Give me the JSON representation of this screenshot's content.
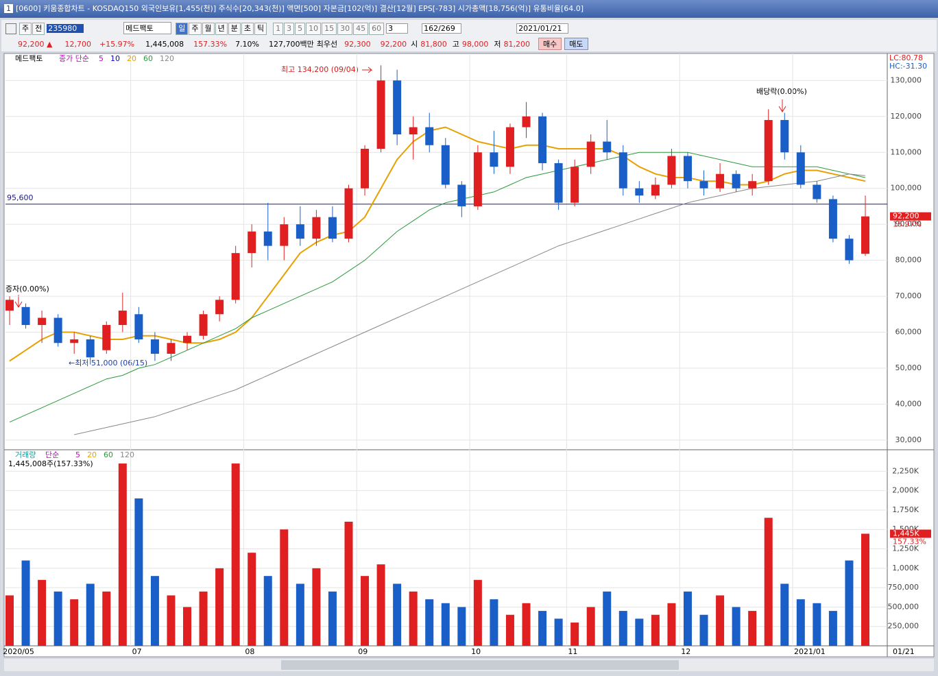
{
  "window": {
    "title": "[0600] 키움종합차트 - KOSDAQ150 외국인보유[1,455(천)] 주식수[20,343(천)] 액면[500] 자본금[102(억)] 결산[12월] EPS[-783] 시가총액[18,756(억)] 유통비율[64.0]"
  },
  "toolbar": {
    "left_buttons": [
      "주",
      "전"
    ],
    "code": "235980",
    "indicator": "메드팩토",
    "period_buttons": [
      "일",
      "주",
      "월",
      "년",
      "분",
      "초",
      "틱"
    ],
    "interval_buttons": [
      "1",
      "3",
      "5",
      "10",
      "15",
      "30",
      "45",
      "60"
    ],
    "count": "3",
    "range": "162/269",
    "date": "2021/01/21"
  },
  "quote": {
    "price": "92,200 ▲",
    "change": "12,700",
    "rate": "+15.97%",
    "volume": "1,445,008",
    "volume_rate": "157.33%",
    "turnover": "7.10%",
    "amount": "127,700백만",
    "best_label": "최우선",
    "bid1": "92,300",
    "bid2": "92,200",
    "open_label": "시",
    "open": "81,800",
    "high_label": "고",
    "high": "98,000",
    "low_label": "저",
    "low": "81,200",
    "buy": "매수",
    "sell": "매도"
  },
  "chart_data": [
    {
      "type": "candlestick",
      "name": "메드팩토",
      "legend_prefix": "종가 단순",
      "legend_extra": [
        {
          "name": "5",
          "color": "#cc00cc"
        },
        {
          "name": "10",
          "color": "#0000cc"
        }
      ],
      "up_color": "#e02020",
      "down_color": "#1a5fc8",
      "x": [
        "2020/05",
        null,
        null,
        null,
        null,
        null,
        null,
        null,
        "07",
        null,
        null,
        null,
        null,
        null,
        null,
        "08",
        null,
        null,
        null,
        null,
        null,
        null,
        "09",
        null,
        null,
        null,
        null,
        null,
        null,
        "10",
        null,
        null,
        null,
        null,
        null,
        "11",
        null,
        null,
        null,
        null,
        null,
        null,
        "12",
        null,
        null,
        null,
        null,
        null,
        null,
        "2021/01",
        null,
        null,
        null,
        null
      ],
      "open": [
        66000,
        67000,
        62000,
        64000,
        57000,
        58000,
        55000,
        62000,
        65000,
        58000,
        54000,
        57000,
        59000,
        65000,
        69000,
        82000,
        88000,
        84000,
        90000,
        86000,
        92000,
        86000,
        100000,
        111000,
        130000,
        115000,
        117000,
        112000,
        101000,
        95000,
        110000,
        106000,
        117000,
        120000,
        107000,
        96000,
        106000,
        113000,
        110000,
        100000,
        98000,
        101000,
        109000,
        102000,
        100000,
        104000,
        100000,
        102000,
        119000,
        110000,
        101000,
        97000,
        86000,
        81800
      ],
      "high": [
        70000,
        68000,
        66000,
        65000,
        60000,
        59000,
        63000,
        71000,
        67000,
        60000,
        58000,
        60000,
        66000,
        70000,
        84000,
        90000,
        96000,
        92000,
        95000,
        94000,
        95000,
        101000,
        112000,
        134200,
        133000,
        120000,
        121000,
        114000,
        102000,
        112000,
        116000,
        118000,
        124000,
        121000,
        108000,
        108000,
        115000,
        119000,
        112000,
        102000,
        103000,
        111000,
        110000,
        105000,
        107000,
        105000,
        104000,
        122000,
        121000,
        112000,
        102000,
        98000,
        87000,
        98000
      ],
      "low": [
        62000,
        61000,
        57000,
        56000,
        54000,
        51000,
        54000,
        60000,
        57000,
        52000,
        52000,
        55000,
        58000,
        63000,
        68000,
        78000,
        80000,
        80000,
        84000,
        84000,
        85000,
        85000,
        98000,
        110000,
        112000,
        108000,
        110000,
        100000,
        92000,
        94000,
        104000,
        104000,
        114000,
        105000,
        94000,
        95000,
        104000,
        108000,
        98000,
        96000,
        97000,
        100000,
        100000,
        98000,
        99000,
        99000,
        98000,
        101000,
        108000,
        100000,
        96000,
        85000,
        79000,
        81200
      ],
      "close": [
        69000,
        62000,
        64000,
        57000,
        58000,
        53000,
        62000,
        66000,
        58000,
        54000,
        57000,
        59000,
        65000,
        69000,
        82000,
        88000,
        84000,
        90000,
        86000,
        92000,
        86000,
        100000,
        111000,
        130000,
        115000,
        117000,
        112000,
        101000,
        95000,
        110000,
        106000,
        117000,
        120000,
        107000,
        96000,
        106000,
        113000,
        110000,
        100000,
        98000,
        101000,
        109000,
        102000,
        100000,
        104000,
        100000,
        102000,
        119000,
        110000,
        101000,
        97000,
        86000,
        80000,
        92200
      ],
      "series": [
        {
          "name": "20",
          "color": "#e8a000",
          "values": [
            52000,
            55000,
            58000,
            60000,
            60000,
            59000,
            58000,
            58000,
            59000,
            59000,
            58000,
            57000,
            57000,
            58000,
            60000,
            64000,
            70000,
            76000,
            82000,
            85000,
            87000,
            88000,
            92000,
            100000,
            108000,
            113000,
            116000,
            117000,
            115000,
            113000,
            112000,
            111000,
            112000,
            112000,
            111000,
            111000,
            111000,
            111000,
            109000,
            106000,
            104000,
            103000,
            103000,
            102000,
            102000,
            101000,
            101000,
            102000,
            104000,
            105000,
            105000,
            104000,
            103000,
            102000
          ]
        },
        {
          "name": "60",
          "color": "#2a9a3a",
          "values": [
            35000,
            37000,
            39000,
            41000,
            43000,
            45000,
            47000,
            48000,
            50000,
            51000,
            53000,
            55000,
            57000,
            59000,
            61000,
            64000,
            66000,
            68000,
            70000,
            72000,
            74000,
            77000,
            80000,
            84000,
            88000,
            91000,
            94000,
            96000,
            97000,
            98000,
            99000,
            101000,
            103000,
            104000,
            105000,
            106000,
            107000,
            108000,
            109000,
            110000,
            110000,
            110000,
            110000,
            109000,
            108000,
            107000,
            106000,
            106000,
            106000,
            106000,
            106000,
            105000,
            104000,
            103000
          ]
        },
        {
          "name": "120",
          "color": "#888888",
          "values": [
            null,
            null,
            null,
            null,
            31500,
            32500,
            33500,
            34500,
            35500,
            36500,
            38000,
            39500,
            41000,
            42500,
            44000,
            46000,
            48000,
            50000,
            52000,
            54000,
            56000,
            58000,
            60000,
            62000,
            64000,
            66000,
            68000,
            70000,
            72000,
            74000,
            76000,
            78000,
            80000,
            82000,
            84000,
            85500,
            87000,
            88500,
            90000,
            91500,
            93000,
            94500,
            96000,
            97000,
            98000,
            99000,
            100000,
            100500,
            101000,
            101500,
            102000,
            103000,
            104000,
            103500
          ]
        }
      ],
      "ylim": [
        27500,
        137500
      ],
      "yticks": [
        {
          "value": 30000,
          "label": "30,000"
        },
        {
          "value": 40000,
          "label": "40,000"
        },
        {
          "value": 50000,
          "label": "50,000"
        },
        {
          "value": 60000,
          "label": "60,000"
        },
        {
          "value": 70000,
          "label": "70,000"
        },
        {
          "value": 80000,
          "label": "80,000"
        },
        {
          "value": 90000,
          "label": "90,000"
        },
        {
          "value": 100000,
          "label": "100,000"
        },
        {
          "value": 110000,
          "label": "110,000"
        },
        {
          "value": 120000,
          "label": "120,000"
        },
        {
          "value": 130000,
          "label": "130,000"
        }
      ],
      "hline": {
        "value": 95600,
        "label": "95,600"
      },
      "last": {
        "value": 92200,
        "label": "92,200",
        "rate": "15.97%"
      },
      "lc": "LC:80.78",
      "hc": "HC:-31.30",
      "annotations": {
        "high": "최고 134,200 (09/04)",
        "low": "←최저 51,000 (06/15)",
        "rights": "증자(0.00%)",
        "dividend": "배당락(0.00%)"
      },
      "end_label": "01/21"
    },
    {
      "type": "bar",
      "name": "거래량",
      "legend_prefix": "단순",
      "legend_items": [
        {
          "name": "5",
          "color": "#cc00cc"
        },
        {
          "name": "20",
          "color": "#e8a000"
        },
        {
          "name": "60",
          "color": "#2a9a3a"
        },
        {
          "name": "120",
          "color": "#888888"
        }
      ],
      "info": "1,445,008주(157.33%)",
      "values": [
        650000,
        1100000,
        850000,
        700000,
        600000,
        800000,
        700000,
        2350000,
        1900000,
        900000,
        650000,
        500000,
        700000,
        1000000,
        2350000,
        1200000,
        900000,
        1500000,
        800000,
        1000000,
        700000,
        1600000,
        900000,
        1050000,
        800000,
        700000,
        600000,
        550000,
        500000,
        850000,
        600000,
        400000,
        550000,
        450000,
        350000,
        300000,
        500000,
        700000,
        450000,
        350000,
        400000,
        550000,
        700000,
        400000,
        650000,
        500000,
        450000,
        1650000,
        800000,
        600000,
        550000,
        450000,
        1100000,
        1445008
      ],
      "ylim": [
        0,
        2430000
      ],
      "yticks": [
        {
          "value": 250000,
          "label": "250,000"
        },
        {
          "value": 500000,
          "label": "500,000"
        },
        {
          "value": 750000,
          "label": "750,000"
        },
        {
          "value": 1000000,
          "label": "1,000K"
        },
        {
          "value": 1250000,
          "label": "1,250K"
        },
        {
          "value": 1500000,
          "label": "1,500K"
        },
        {
          "value": 1750000,
          "label": "1,750K"
        },
        {
          "value": 2000000,
          "label": "2,000K"
        },
        {
          "value": 2250000,
          "label": "2,250K"
        }
      ],
      "last": {
        "value": 1445008,
        "label": "1,445K",
        "rate": "157.33%"
      }
    }
  ]
}
